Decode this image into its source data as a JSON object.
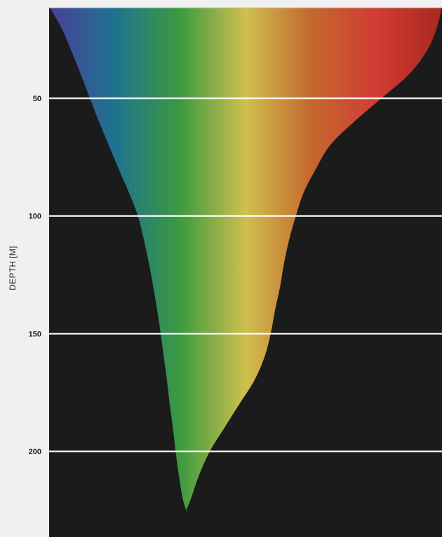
{
  "chart_data": {
    "type": "area",
    "title": "",
    "xlabel": "",
    "ylabel": "DEPTH [M]",
    "y_ticks": [
      50,
      100,
      150,
      200
    ],
    "y_tick_labels": [
      "50",
      "100",
      "150",
      "200"
    ],
    "ylim": [
      11,
      236
    ],
    "y_inverted": true,
    "grid": "horizontal",
    "spectrum_colors": [
      "#4a3f9a",
      "#1e7390",
      "#3c9a3f",
      "#cfc04e",
      "#c4682e",
      "#d13c34",
      "#a8281f"
    ],
    "plot_background": "#1b1b1b",
    "page_background": "#f0f0f0",
    "gridline_color": "#ffffff",
    "profile": {
      "depth": [
        11,
        20,
        30,
        40,
        50,
        60,
        70,
        80,
        90,
        100,
        110,
        120,
        130,
        140,
        150,
        160,
        170,
        180,
        190,
        200,
        210,
        220,
        225
      ],
      "left_fraction": [
        0.0,
        0.031,
        0.057,
        0.081,
        0.104,
        0.127,
        0.152,
        0.177,
        0.203,
        0.226,
        0.241,
        0.254,
        0.265,
        0.275,
        0.284,
        0.292,
        0.3,
        0.307,
        0.315,
        0.322,
        0.33,
        0.34,
        0.349
      ],
      "right_fraction": [
        1.0,
        0.987,
        0.961,
        0.915,
        0.846,
        0.776,
        0.715,
        0.679,
        0.648,
        0.628,
        0.611,
        0.598,
        0.588,
        0.575,
        0.564,
        0.548,
        0.522,
        0.484,
        0.446,
        0.409,
        0.382,
        0.361,
        0.349
      ]
    }
  }
}
